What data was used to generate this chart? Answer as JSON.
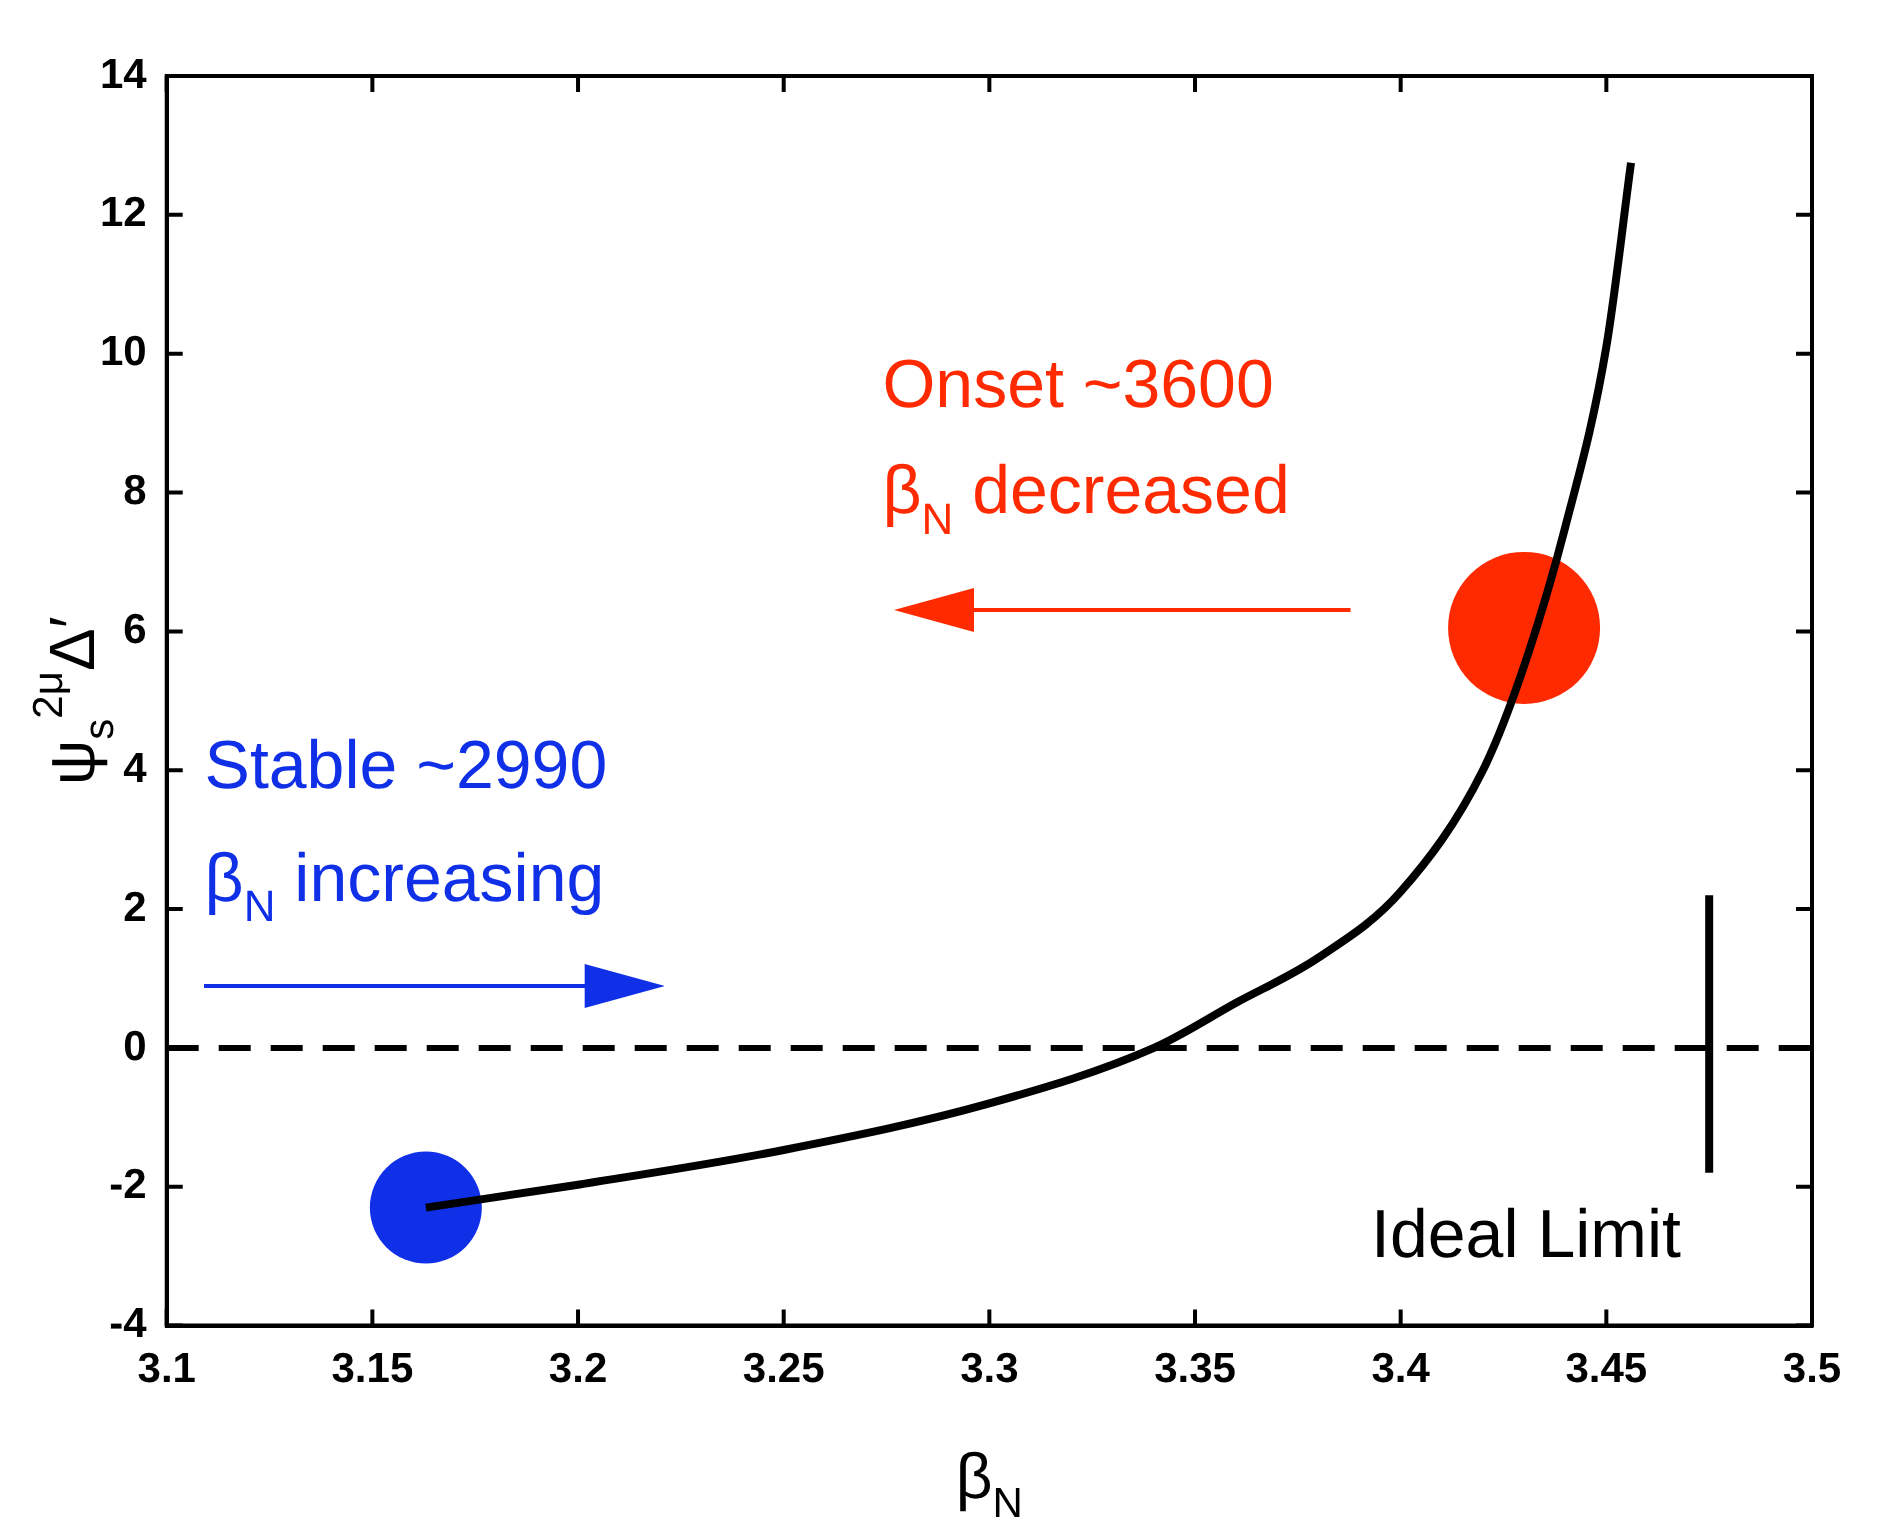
{
  "chart_data": {
    "type": "line",
    "xlabel": "β$_{N}$",
    "ylabel": "ψ$_{s}$$^{2μ}$Δ′",
    "xlim": [
      3.1,
      3.5
    ],
    "xticks": [
      3.1,
      3.15,
      3.2,
      3.25,
      3.3,
      3.35,
      3.4,
      3.45,
      3.5
    ],
    "ylim": [
      -4,
      14
    ],
    "yticks": [
      -4,
      -2,
      0,
      2,
      4,
      6,
      8,
      10,
      12,
      14
    ],
    "grid": false,
    "legend": false,
    "series": [
      {
        "type": "line",
        "color": "#000000",
        "x": [
          3.163,
          3.2,
          3.25,
          3.3,
          3.34,
          3.36,
          3.38,
          3.4,
          3.42,
          3.43,
          3.44,
          3.45,
          3.456
        ],
        "values": [
          -2.3,
          -1.97,
          -1.47,
          -0.8,
          0,
          0.65,
          1.3,
          2.25,
          4.0,
          5.5,
          7.5,
          10.1,
          12.75
        ]
      },
      {
        "type": "line",
        "color": "#000000",
        "x": [
          3.475,
          3.475
        ],
        "values": [
          -1.8,
          2.2
        ]
      },
      {
        "type": "scatter",
        "color": "#1030e8",
        "x": [
          3.163
        ],
        "values": [
          -2.3
        ]
      },
      {
        "type": "scatter",
        "color": "#ff2a00",
        "x": [
          3.43
        ],
        "values": [
          6.05
        ]
      }
    ],
    "ref_lines": [
      {
        "axis": "y",
        "value": 0,
        "line_style": "dashed",
        "color": "#000000"
      }
    ],
    "annotations": [
      "Onset ~3600",
      "β$_{N}$ decreased",
      "Stable ~2990",
      "β$_{N}$ increasing",
      "Ideal Limit"
    ]
  }
}
